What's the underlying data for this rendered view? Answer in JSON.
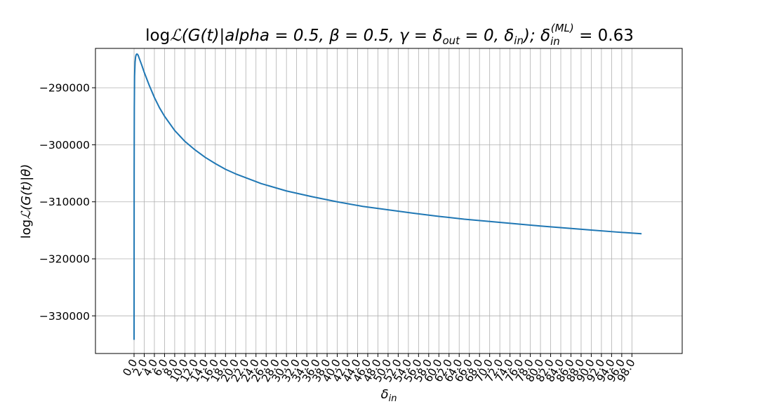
{
  "chart_data": {
    "type": "line",
    "title": {
      "prefix": "log",
      "L": "ℒ",
      "body": "(G(t)|alpha = 0.5, β = 0.5, γ = δ",
      "out_sub": "out",
      "body2": " = 0, δ",
      "in_sub": "in",
      "body3": ");  δ",
      "ml_sub": "in",
      "ml_sup": "(ML)",
      "value": " = 0.63"
    },
    "xlabel": {
      "main": "δ",
      "sub": "in"
    },
    "ylabel": {
      "prefix": "log",
      "L": "ℒ",
      "rest": "(G(t)|θ)"
    },
    "xlim": [
      -7.6,
      107.9
    ],
    "ylim": [
      -336600,
      -283100
    ],
    "y_ticks": [
      -290000,
      -300000,
      -310000,
      -320000,
      -330000
    ],
    "y_tick_labels": [
      "−290000",
      "−300000",
      "−310000",
      "−320000",
      "−330000"
    ],
    "x_ticks": [
      0,
      2,
      4,
      6,
      8,
      10,
      12,
      14,
      16,
      18,
      20,
      22,
      24,
      26,
      28,
      30,
      32,
      34,
      36,
      38,
      40,
      42,
      44,
      46,
      48,
      50,
      52,
      54,
      56,
      58,
      60,
      62,
      64,
      66,
      68,
      70,
      72,
      74,
      76,
      78,
      80,
      82,
      84,
      86,
      88,
      90,
      92,
      94,
      96,
      98
    ],
    "x_tick_labels": [
      "0.0",
      "2.0",
      "4.0",
      "6.0",
      "8.0",
      "10.0",
      "12.0",
      "14.0",
      "16.0",
      "18.0",
      "20.0",
      "22.0",
      "24.0",
      "26.0",
      "28.0",
      "30.0",
      "32.0",
      "34.0",
      "36.0",
      "38.0",
      "40.0",
      "42.0",
      "44.0",
      "46.0",
      "48.0",
      "50.0",
      "52.0",
      "54.0",
      "56.0",
      "58.0",
      "60.0",
      "62.0",
      "64.0",
      "66.0",
      "68.0",
      "70.0",
      "72.0",
      "74.0",
      "76.0",
      "78.0",
      "80.0",
      "82.0",
      "84.0",
      "86.0",
      "88.0",
      "90.0",
      "92.0",
      "94.0",
      "96.0",
      "98.0"
    ],
    "grid": true,
    "series": [
      {
        "color": "#1f77b4",
        "x": [
          0.0,
          0.02,
          0.05,
          0.1,
          0.2,
          0.3,
          0.4,
          0.5,
          0.63,
          0.8,
          1.0,
          1.5,
          2.0,
          3.0,
          4.0,
          5.0,
          6.0,
          8.0,
          10.0,
          12.0,
          14.0,
          16.0,
          18.0,
          20.0,
          25.0,
          30.0,
          35.0,
          40.0,
          45.0,
          50.0,
          55.0,
          60.0,
          65.0,
          70.0,
          75.0,
          80.0,
          85.0,
          90.0,
          95.0,
          99.9
        ],
        "y": [
          -334200,
          -305000,
          -293500,
          -288000,
          -285500,
          -284600,
          -284250,
          -284100,
          -284100,
          -284300,
          -284800,
          -286000,
          -287300,
          -289600,
          -291700,
          -293500,
          -295000,
          -297500,
          -299400,
          -300900,
          -302200,
          -303300,
          -304300,
          -305100,
          -306800,
          -308100,
          -309100,
          -310000,
          -310800,
          -311400,
          -312000,
          -312550,
          -313050,
          -313450,
          -313850,
          -314250,
          -314600,
          -314950,
          -315300,
          -315600
        ]
      }
    ]
  }
}
